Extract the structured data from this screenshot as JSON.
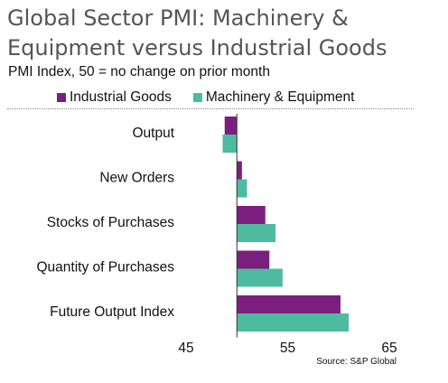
{
  "chart_data": {
    "type": "bar",
    "orientation": "horizontal",
    "title": "Global Sector PMI: Machinery & Equipment versus Industrial Goods",
    "subtitle": "PMI Index, 50 = no change on prior month",
    "categories": [
      "Output",
      "New Orders",
      "Stocks of Purchases",
      "Quantity of Purchases",
      "Future Output Index"
    ],
    "series": [
      {
        "name": "Industrial Goods",
        "color": "#7B1F7F",
        "values": [
          48.8,
          50.5,
          52.8,
          53.2,
          60.2
        ]
      },
      {
        "name": "Machinery & Equipment",
        "color": "#4DBBA0",
        "values": [
          48.6,
          51.0,
          53.8,
          54.5,
          61.0
        ]
      }
    ],
    "baseline": 50,
    "xlim": [
      45,
      65
    ],
    "xticks": [
      "45",
      "55",
      "65"
    ],
    "legend_position": "top",
    "grid": false,
    "source": "Source: S&P Global"
  }
}
